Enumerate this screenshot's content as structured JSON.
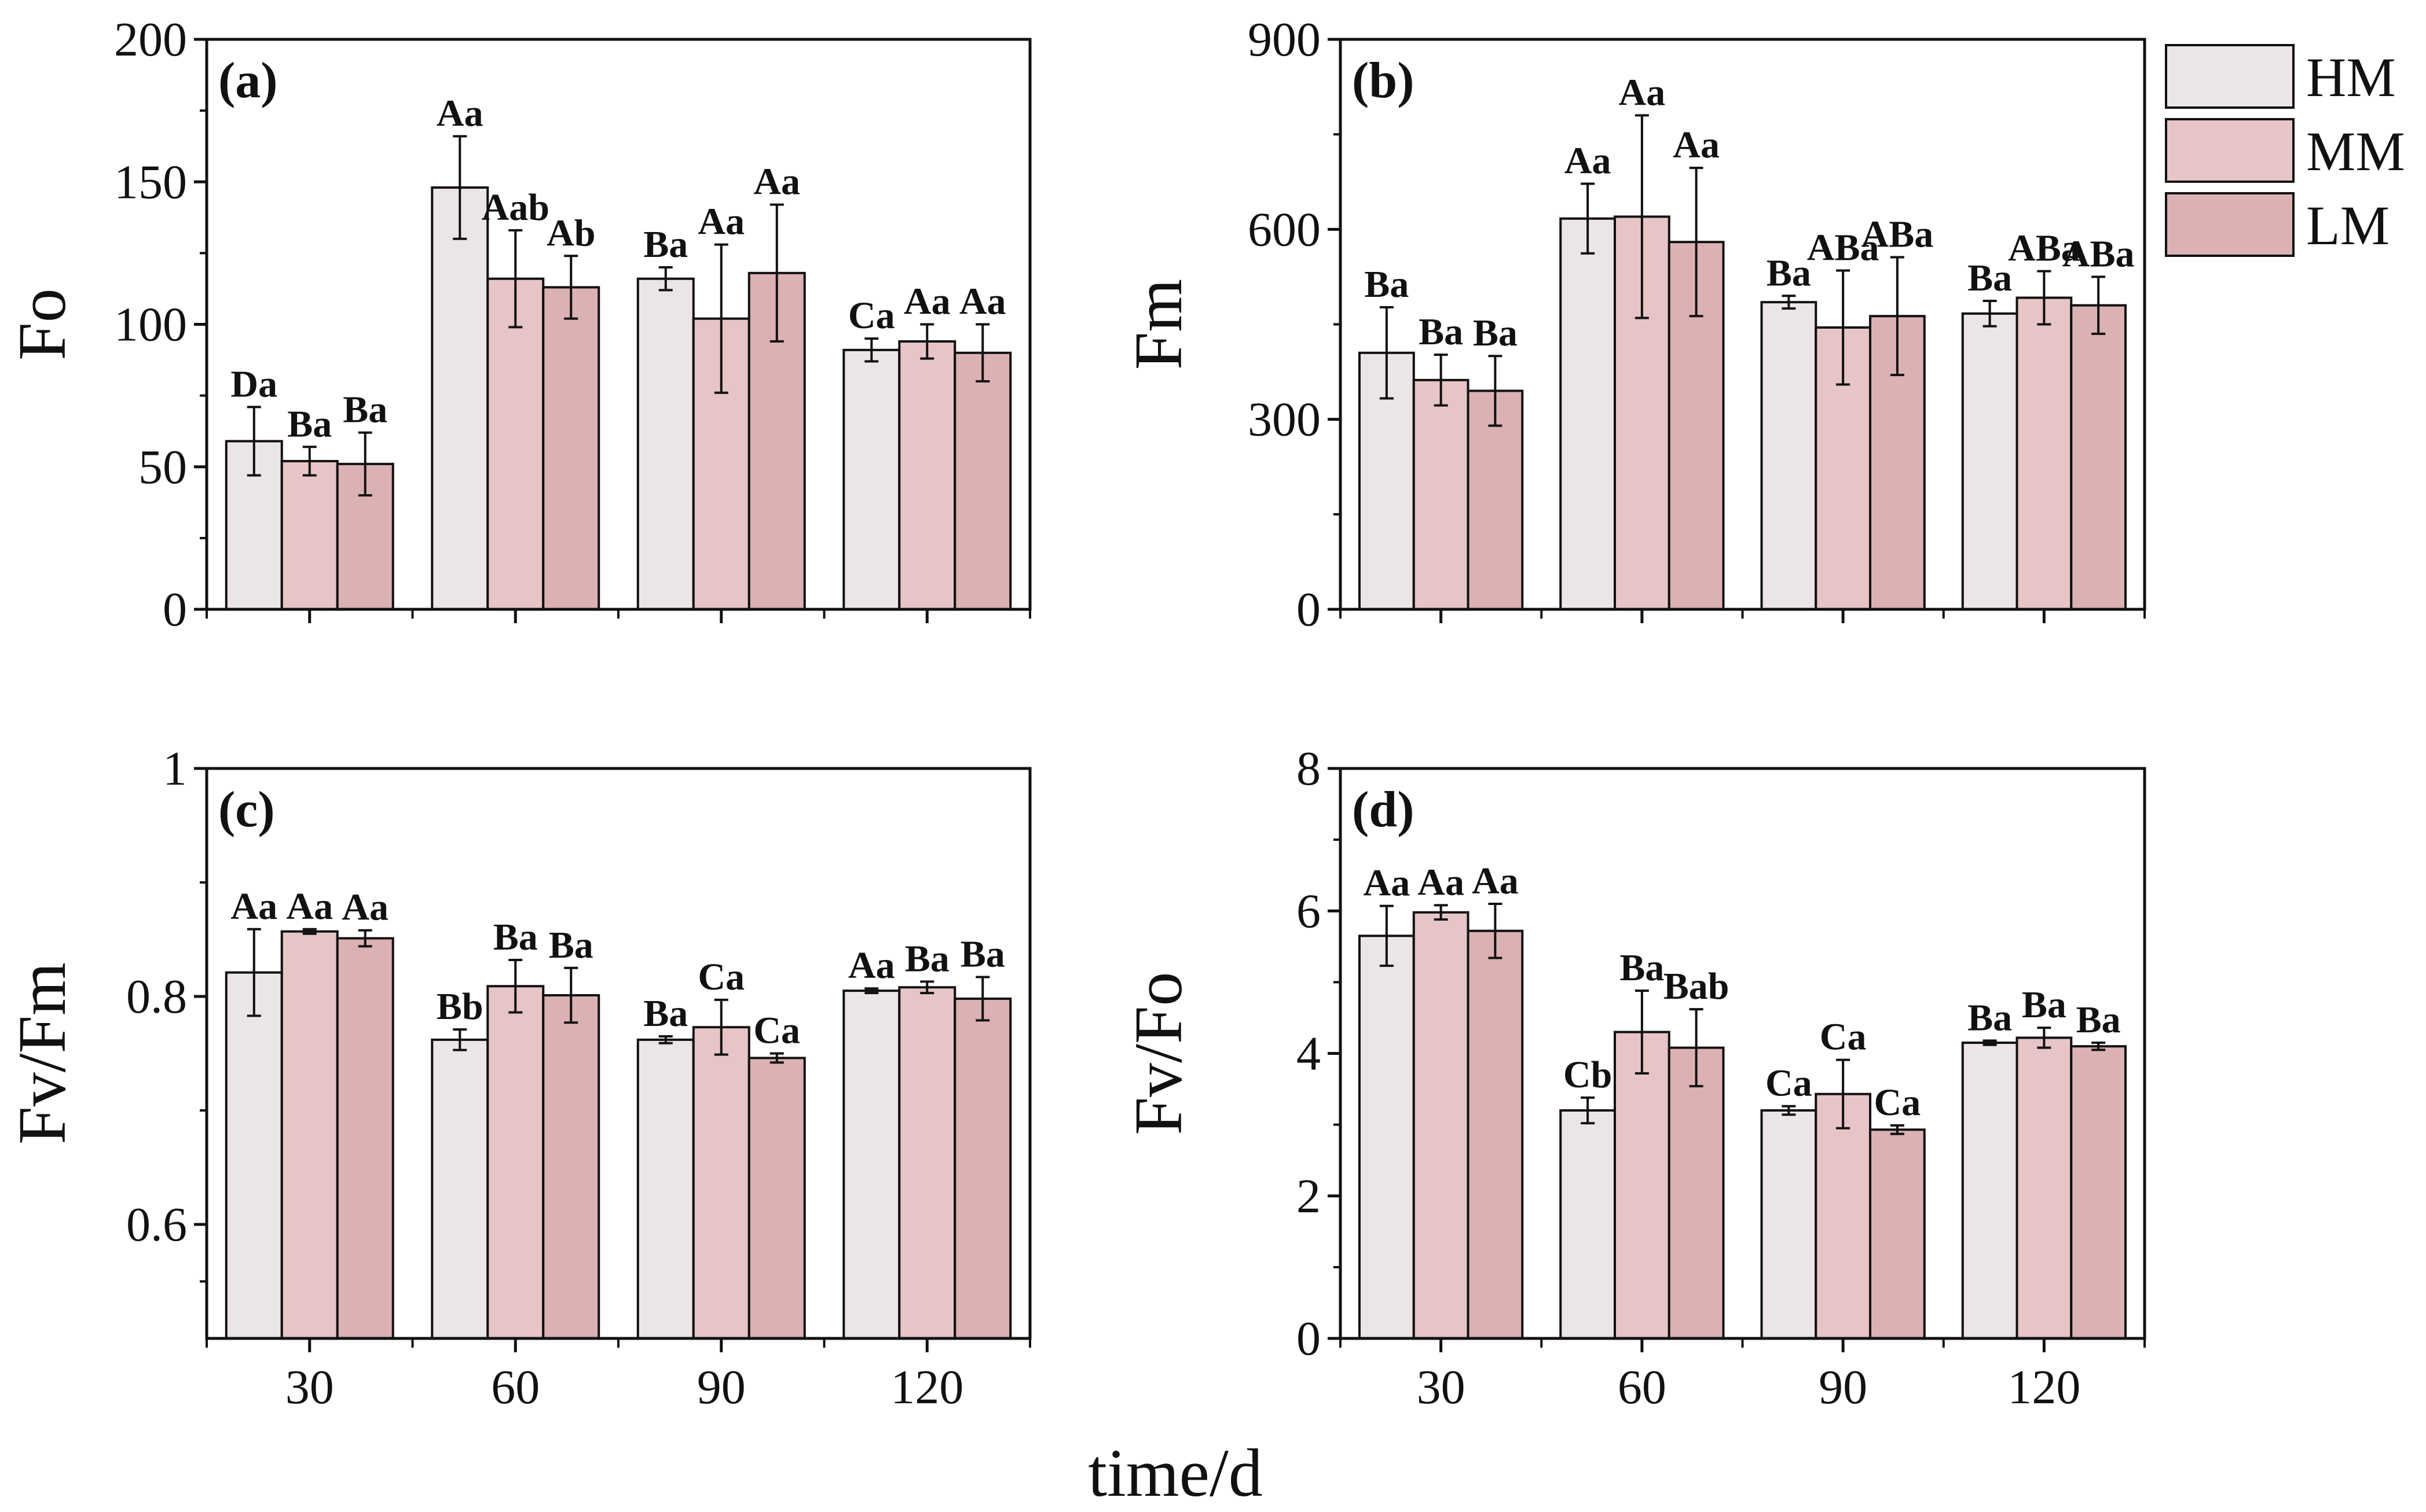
{
  "chart_data": [
    {
      "type": "bar",
      "panel": "(a)",
      "ylabel": "Fo",
      "xlabel": "",
      "categories": [
        "30",
        "60",
        "90",
        "120"
      ],
      "ylim": [
        0,
        200
      ],
      "yticks": [
        0,
        50,
        100,
        150,
        200
      ],
      "series": [
        {
          "name": "HM",
          "values": [
            59,
            148,
            116,
            91
          ],
          "errors": [
            12,
            18,
            4,
            4
          ],
          "labels": [
            "Da",
            "Aa",
            "Ba",
            "Ca"
          ]
        },
        {
          "name": "MM",
          "values": [
            52,
            116,
            102,
            94
          ],
          "errors": [
            5,
            17,
            26,
            6
          ],
          "labels": [
            "Ba",
            "Aab",
            "Aa",
            "Aa"
          ]
        },
        {
          "name": "LM",
          "values": [
            51,
            113,
            118,
            90
          ],
          "errors": [
            11,
            11,
            24,
            10
          ],
          "labels": [
            "Ba",
            "Ab",
            "Aa",
            "Aa"
          ]
        }
      ]
    },
    {
      "type": "bar",
      "panel": "(b)",
      "ylabel": "Fm",
      "xlabel": "",
      "categories": [
        "30",
        "60",
        "90",
        "120"
      ],
      "ylim": [
        0,
        900
      ],
      "yticks": [
        0,
        300,
        600,
        900
      ],
      "series": [
        {
          "name": "HM",
          "values": [
            405,
            617,
            485,
            467
          ],
          "errors": [
            72,
            55,
            10,
            20
          ],
          "labels": [
            "Ba",
            "Aa",
            "Ba",
            "Ba"
          ]
        },
        {
          "name": "MM",
          "values": [
            362,
            620,
            445,
            492
          ],
          "errors": [
            40,
            160,
            90,
            42
          ],
          "labels": [
            "Ba",
            "Aa",
            "ABa",
            "ABa"
          ]
        },
        {
          "name": "LM",
          "values": [
            345,
            580,
            463,
            480
          ],
          "errors": [
            55,
            117,
            93,
            45
          ],
          "labels": [
            "Ba",
            "Aa",
            "ABa",
            "ABa"
          ]
        }
      ]
    },
    {
      "type": "bar",
      "panel": "(c)",
      "ylabel": "Fv/Fm",
      "xlabel": "time/d",
      "categories": [
        "30",
        "60",
        "90",
        "120"
      ],
      "ylim": [
        0.5,
        1.0
      ],
      "yticks": [
        0.6,
        0.8,
        1.0
      ],
      "series": [
        {
          "name": "HM",
          "values": [
            0.821,
            0.762,
            0.762,
            0.805
          ],
          "errors": [
            0.038,
            0.009,
            0.003,
            0.002
          ],
          "labels": [
            "Aa",
            "Bb",
            "Ba",
            "Aa"
          ]
        },
        {
          "name": "MM",
          "values": [
            0.857,
            0.809,
            0.773,
            0.808
          ],
          "errors": [
            0.002,
            0.023,
            0.024,
            0.005
          ],
          "labels": [
            "Aa",
            "Ba",
            "Ca",
            "Ba"
          ]
        },
        {
          "name": "LM",
          "values": [
            0.851,
            0.801,
            0.746,
            0.798
          ],
          "errors": [
            0.007,
            0.024,
            0.004,
            0.019
          ],
          "labels": [
            "Aa",
            "Ba",
            "Ca",
            "Ba"
          ]
        }
      ]
    },
    {
      "type": "bar",
      "panel": "(d)",
      "ylabel": "Fv/Fo",
      "xlabel": "time/d",
      "categories": [
        "30",
        "60",
        "90",
        "120"
      ],
      "ylim": [
        0,
        8
      ],
      "yticks": [
        0,
        2,
        4,
        6,
        8
      ],
      "series": [
        {
          "name": "HM",
          "values": [
            5.65,
            3.2,
            3.2,
            4.15
          ],
          "errors": [
            0.42,
            0.18,
            0.06,
            0.03
          ],
          "labels": [
            "Aa",
            "Cb",
            "Ca",
            "Ba"
          ]
        },
        {
          "name": "MM",
          "values": [
            5.98,
            4.3,
            3.43,
            4.22
          ],
          "errors": [
            0.1,
            0.58,
            0.48,
            0.14
          ],
          "labels": [
            "Aa",
            "Ba",
            "Ca",
            "Ba"
          ]
        },
        {
          "name": "LM",
          "values": [
            5.72,
            4.08,
            2.93,
            4.1
          ],
          "errors": [
            0.38,
            0.54,
            0.06,
            0.05
          ],
          "labels": [
            "Aa",
            "Bab",
            "Ca",
            "Ba"
          ]
        }
      ]
    }
  ],
  "legend": {
    "items": [
      {
        "name": "HM",
        "color": "#ebe5e6"
      },
      {
        "name": "MM",
        "color": "#e7c5c6"
      },
      {
        "name": "LM",
        "color": "#dcb1b3"
      }
    ]
  },
  "shared_xlabel": "time/d",
  "colors": {
    "HM": "#ebe5e6",
    "MM": "#e7c5c6",
    "LM": "#dcb1b3",
    "axis": "#111111"
  }
}
